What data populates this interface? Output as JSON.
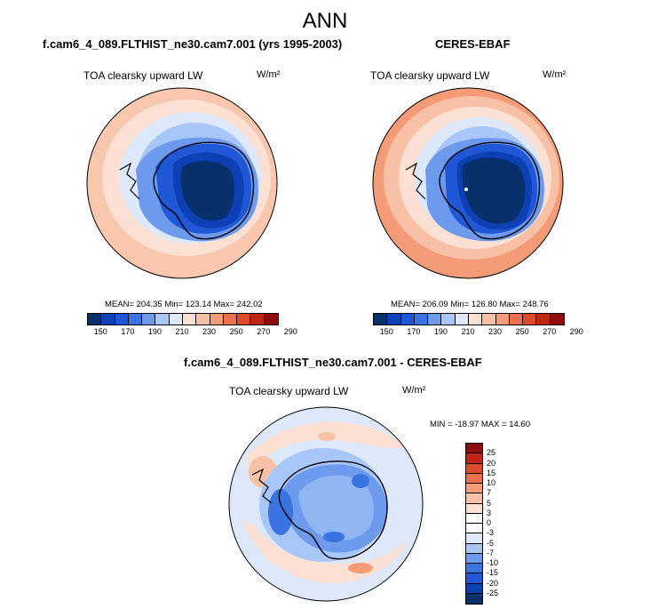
{
  "title": "ANN",
  "panels": {
    "model": {
      "title": "f.cam6_4_089.FLTHIST_ne30.cam7.001 (yrs 1995-2003)",
      "variable": "TOA clearsky upward LW",
      "units": "W/m²",
      "stats": "MEAN= 204.35  Min= 123.14  Max= 242.02"
    },
    "obs": {
      "title": "CERES-EBAF",
      "variable": "TOA clearsky upward LW",
      "units": "W/m²",
      "stats": "MEAN= 206.09  Min= 126.80  Max= 248.76"
    },
    "diff": {
      "title": "f.cam6_4_089.FLTHIST_ne30.cam7.001 - CERES-EBAF",
      "variable": "TOA clearsky upward LW",
      "units": "W/m²",
      "stats": "MIN = -18.97 MAX =  14.60"
    }
  },
  "colorbar_main": {
    "ticks": [
      "150",
      "170",
      "190",
      "210",
      "230",
      "250",
      "270",
      "290"
    ],
    "colors": [
      "#08306b",
      "#0d3fb5",
      "#1f57d6",
      "#3a74e3",
      "#6e9aee",
      "#a8c6f7",
      "#dde9fb",
      "#fbe0d3",
      "#f8c1a6",
      "#f49b77",
      "#ec6f4e",
      "#dd4b2c",
      "#bd2614",
      "#8e0c0b"
    ]
  },
  "colorbar_diff": {
    "ticks": [
      "25",
      "20",
      "15",
      "10",
      "7",
      "5",
      "3",
      "0",
      "-3",
      "-5",
      "-7",
      "-10",
      "-15",
      "-20",
      "-25"
    ],
    "colors": [
      "#8e0c0b",
      "#bd2614",
      "#dd4b2c",
      "#ec6f4e",
      "#f49b77",
      "#f8c1a6",
      "#fbe0d3",
      "#ffffff",
      "#dde9fb",
      "#a8c6f7",
      "#6e9aee",
      "#3a74e3",
      "#1f57d6",
      "#0d3fb5",
      "#08306b"
    ]
  }
}
